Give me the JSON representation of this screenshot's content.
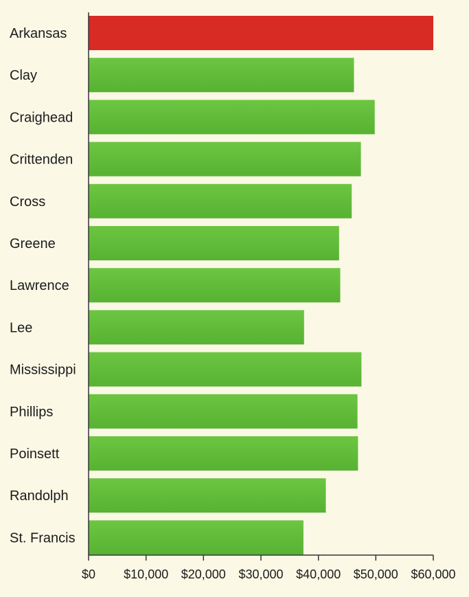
{
  "chart_data": {
    "type": "bar",
    "orientation": "horizontal",
    "categories": [
      "Arkansas",
      "Clay",
      "Craighead",
      "Crittenden",
      "Cross",
      "Greene",
      "Lawrence",
      "Lee",
      "Mississippi",
      "Phillips",
      "Poinsett",
      "Randolph",
      "St. Francis"
    ],
    "values": [
      60000,
      46200,
      49800,
      47400,
      45800,
      43600,
      43800,
      37500,
      47500,
      46800,
      46900,
      41300,
      37400
    ],
    "highlight_category": "Arkansas",
    "xlim": [
      0,
      60000
    ],
    "xticks": [
      0,
      10000,
      20000,
      30000,
      40000,
      50000,
      60000
    ],
    "xtick_labels": [
      "$0",
      "$10,000",
      "$20,000",
      "$30,000",
      "$40,000",
      "$50,000",
      "$60,000"
    ],
    "title": "",
    "xlabel": "",
    "ylabel": "",
    "grid": false,
    "legend": "none",
    "colors": {
      "background": "#fbf8e6",
      "highlight": "#d82b24",
      "bar": "#63be3a",
      "axis": "#333333",
      "text": "#1b1b1b"
    }
  }
}
